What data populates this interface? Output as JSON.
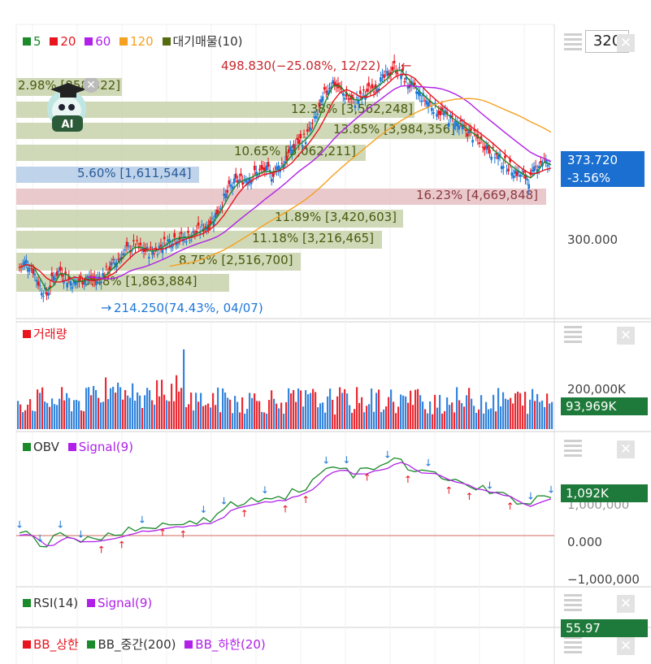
{
  "chart_data": [
    {
      "type": "candlestick",
      "legend": [
        {
          "name": "5",
          "color": "#1a8a2a"
        },
        {
          "name": "20",
          "color": "#e8141e"
        },
        {
          "name": "60",
          "color": "#b020e8"
        },
        {
          "name": "120",
          "color": "#f5a020"
        },
        {
          "name": "대기매물(10)",
          "color": "#556b10"
        }
      ],
      "period": "320",
      "last_price": "373.720",
      "change_pct": "-3.56%",
      "y_tick": "300.000",
      "high_label": "498.830(−25.08%, 12/22)",
      "low_label": "214.250(74.43%, 04/07)",
      "volume_profile": [
        {
          "text": "12.38% [3,562,248]"
        },
        {
          "text": "13.85% [3,984,356]"
        },
        {
          "text": "10.65% [3,062,211]"
        },
        {
          "text": "5.60% [1,611,544]"
        },
        {
          "text": "16.23% [4,669,848]"
        },
        {
          "text": "11.89% [3,420,603]"
        },
        {
          "text": "11.18% [3,216,465]"
        },
        {
          "text": "8.75% [2,516,700]"
        },
        {
          "text": "6.48% [1,863,884]"
        },
        {
          "text": "2.98% [858,322]"
        }
      ],
      "price_series": [
        255,
        262,
        252,
        232,
        222,
        244,
        252,
        241,
        236,
        240,
        242,
        238,
        244,
        252,
        261,
        270,
        277,
        282,
        276,
        274,
        276,
        283,
        288,
        292,
        290,
        294,
        298,
        303,
        310,
        322,
        338,
        353,
        360,
        362,
        366,
        370,
        373,
        368,
        376,
        385,
        398,
        408,
        412,
        427,
        446,
        470,
        480,
        470,
        462,
        455,
        460,
        468,
        474,
        480,
        488,
        498,
        490,
        478,
        470,
        462,
        455,
        448,
        442,
        436,
        430,
        424,
        418,
        412,
        406,
        398,
        390,
        382,
        376,
        370,
        365,
        362,
        380,
        385,
        374
      ]
    },
    {
      "type": "bar",
      "legend": [
        {
          "name": "거래량",
          "color": "#e8141e"
        }
      ],
      "y_tick": "200,000K",
      "last_value": "93,969K"
    },
    {
      "type": "line",
      "legend": [
        {
          "name": "OBV",
          "color": "#1a8a2a"
        },
        {
          "name": "Signal(9)",
          "color": "#b020e8"
        }
      ],
      "y_ticks": [
        "1,000,000",
        "0.000",
        "−1,000,000"
      ],
      "last_value": "1,092K"
    },
    {
      "type": "line",
      "legend": [
        {
          "name": "RSI(14)",
          "color": "#1a8a2a"
        },
        {
          "name": "Signal(9)",
          "color": "#b020e8"
        }
      ],
      "last_value": "55.97"
    },
    {
      "type": "line",
      "legend": [
        {
          "name": "BB_상한",
          "color": "#e8141e"
        },
        {
          "name": "BB_중간(200)",
          "color": "#1a8a2a"
        },
        {
          "name": "BB_하한(20)",
          "color": "#b020e8"
        }
      ]
    }
  ],
  "colors": {
    "up": "#e8141e",
    "down": "#1e78d8",
    "tag_blue": "#1a6fd0",
    "tag_green": "#1e7a3a",
    "vp_green": "#c8d2aa",
    "vp_blue": "#b4cce6",
    "vp_red": "#e6c0c4"
  },
  "icons": {
    "menu": "hamburger-icon",
    "close": "close-icon",
    "ai": "ai-mascot-icon"
  },
  "ai_label": "AI"
}
